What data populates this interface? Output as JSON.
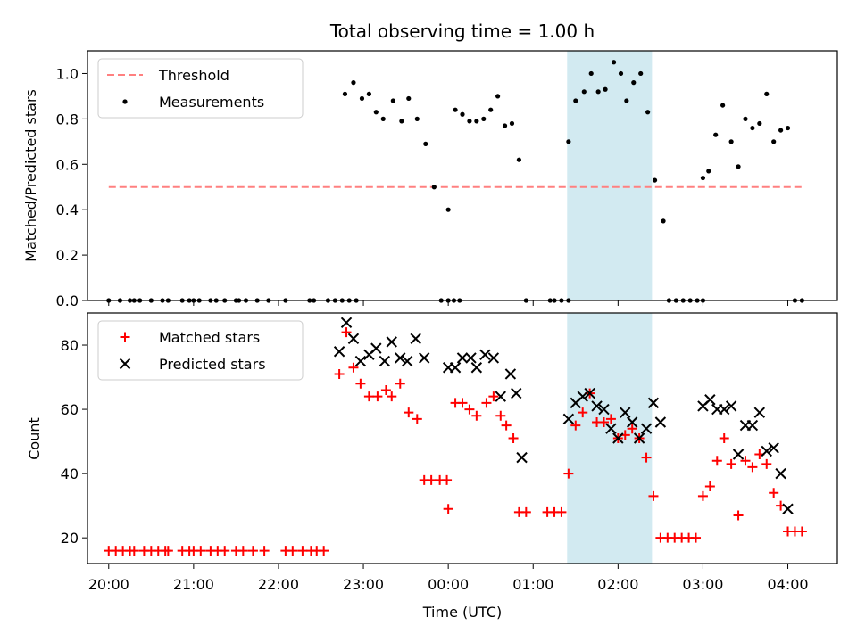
{
  "chart_data": [
    {
      "type": "scatter",
      "title": "Total observing time = 1.00 h",
      "xlabel": "",
      "ylabel": "Matched/Predicted stars",
      "xlim": [
        "19:45",
        "04:35"
      ],
      "ylim": [
        0,
        1.1
      ],
      "yticks": [
        "0.0",
        "0.2",
        "0.4",
        "0.6",
        "0.8",
        "1.0"
      ],
      "highlight_band": {
        "x": [
          "01:24",
          "02:24"
        ],
        "color": "#add8e6"
      },
      "legend": {
        "placement": "upper left",
        "entries": [
          "Threshold",
          "Measurements"
        ]
      },
      "series": [
        {
          "name": "Threshold",
          "kind": "dashed-line",
          "color": "#ff8080",
          "points": [
            [
              "20:00",
              0.5
            ],
            [
              "04:10",
              0.5
            ]
          ]
        },
        {
          "name": "Measurements",
          "kind": "dots",
          "color": "#000000",
          "points": [
            [
              "20:00",
              0
            ],
            [
              "20:08",
              0
            ],
            [
              "20:15",
              0
            ],
            [
              "20:18",
              0
            ],
            [
              "20:22",
              0
            ],
            [
              "20:30",
              0
            ],
            [
              "20:38",
              0
            ],
            [
              "20:42",
              0
            ],
            [
              "20:52",
              0
            ],
            [
              "20:57",
              0
            ],
            [
              "21:00",
              0
            ],
            [
              "21:04",
              0
            ],
            [
              "21:12",
              0
            ],
            [
              "21:16",
              0
            ],
            [
              "21:22",
              0
            ],
            [
              "21:30",
              0
            ],
            [
              "21:32",
              0
            ],
            [
              "21:37",
              0
            ],
            [
              "21:45",
              0
            ],
            [
              "21:53",
              0
            ],
            [
              "22:05",
              0
            ],
            [
              "22:22",
              0
            ],
            [
              "22:25",
              0
            ],
            [
              "22:35",
              0
            ],
            [
              "22:40",
              0
            ],
            [
              "22:45",
              0
            ],
            [
              "22:50",
              0
            ],
            [
              "22:55",
              0
            ],
            [
              "22:47",
              0.91
            ],
            [
              "22:53",
              0.96
            ],
            [
              "22:59",
              0.89
            ],
            [
              "23:04",
              0.91
            ],
            [
              "23:09",
              0.83
            ],
            [
              "23:14",
              0.8
            ],
            [
              "23:21",
              0.88
            ],
            [
              "23:27",
              0.79
            ],
            [
              "23:32",
              0.89
            ],
            [
              "23:38",
              0.8
            ],
            [
              "23:44",
              0.69
            ],
            [
              "23:50",
              0.5
            ],
            [
              "23:55",
              0
            ],
            [
              "24:00",
              0
            ],
            [
              "24:04",
              0
            ],
            [
              "24:08",
              0
            ],
            [
              "24:00",
              0.4
            ],
            [
              "24:05",
              0.84
            ],
            [
              "24:10",
              0.82
            ],
            [
              "24:15",
              0.79
            ],
            [
              "24:20",
              0.79
            ],
            [
              "24:25",
              0.8
            ],
            [
              "24:30",
              0.84
            ],
            [
              "24:35",
              0.9
            ],
            [
              "24:40",
              0.77
            ],
            [
              "24:45",
              0.78
            ],
            [
              "24:50",
              0.62
            ],
            [
              "24:55",
              0
            ],
            [
              "25:12",
              0
            ],
            [
              "25:15",
              0
            ],
            [
              "25:20",
              0
            ],
            [
              "25:25",
              0
            ],
            [
              "25:25",
              0.7
            ],
            [
              "25:30",
              0.88
            ],
            [
              "25:36",
              0.92
            ],
            [
              "25:41",
              1.0
            ],
            [
              "25:46",
              0.92
            ],
            [
              "25:51",
              0.93
            ],
            [
              "25:57",
              1.05
            ],
            [
              "26:02",
              1.0
            ],
            [
              "26:06",
              0.88
            ],
            [
              "26:11",
              0.96
            ],
            [
              "26:16",
              1.0
            ],
            [
              "26:21",
              0.83
            ],
            [
              "26:26",
              0.53
            ],
            [
              "26:32",
              0.35
            ],
            [
              "26:36",
              0
            ],
            [
              "26:41",
              0
            ],
            [
              "26:46",
              0
            ],
            [
              "26:51",
              0
            ],
            [
              "26:56",
              0
            ],
            [
              "27:00",
              0
            ],
            [
              "27:00",
              0.54
            ],
            [
              "27:04",
              0.57
            ],
            [
              "27:09",
              0.73
            ],
            [
              "27:14",
              0.86
            ],
            [
              "27:20",
              0.7
            ],
            [
              "27:25",
              0.59
            ],
            [
              "27:30",
              0.8
            ],
            [
              "27:35",
              0.76
            ],
            [
              "27:40",
              0.78
            ],
            [
              "27:45",
              0.91
            ],
            [
              "27:50",
              0.7
            ],
            [
              "27:55",
              0.75
            ],
            [
              "28:00",
              0.76
            ],
            [
              "28:05",
              0
            ],
            [
              "28:10",
              0
            ]
          ]
        }
      ]
    },
    {
      "type": "scatter",
      "title": "",
      "xlabel": "Time (UTC)",
      "ylabel": "Count",
      "xlim": [
        "19:45",
        "04:35"
      ],
      "ylim": [
        12,
        90
      ],
      "yticks": [
        "20",
        "40",
        "60",
        "80"
      ],
      "xticks": [
        "20:00",
        "21:00",
        "22:00",
        "23:00",
        "00:00",
        "01:00",
        "02:00",
        "03:00",
        "04:00"
      ],
      "highlight_band": {
        "x": [
          "01:24",
          "02:24"
        ],
        "color": "#add8e6"
      },
      "legend": {
        "placement": "upper left",
        "entries": [
          "Matched stars",
          "Predicted stars"
        ]
      },
      "series": [
        {
          "name": "Matched stars",
          "marker": "+",
          "color": "#ff0000",
          "points": [
            [
              "20:00",
              16
            ],
            [
              "20:05",
              16
            ],
            [
              "20:10",
              16
            ],
            [
              "20:15",
              16
            ],
            [
              "20:18",
              16
            ],
            [
              "20:25",
              16
            ],
            [
              "20:30",
              16
            ],
            [
              "20:35",
              16
            ],
            [
              "20:40",
              16
            ],
            [
              "20:42",
              16
            ],
            [
              "20:52",
              16
            ],
            [
              "20:57",
              16
            ],
            [
              "21:00",
              16
            ],
            [
              "21:05",
              16
            ],
            [
              "21:12",
              16
            ],
            [
              "21:17",
              16
            ],
            [
              "21:22",
              16
            ],
            [
              "21:30",
              16
            ],
            [
              "21:35",
              16
            ],
            [
              "21:42",
              16
            ],
            [
              "21:50",
              16
            ],
            [
              "22:05",
              16
            ],
            [
              "22:10",
              16
            ],
            [
              "22:17",
              16
            ],
            [
              "22:23",
              16
            ],
            [
              "22:27",
              16
            ],
            [
              "22:32",
              16
            ],
            [
              "22:43",
              71
            ],
            [
              "22:48",
              84
            ],
            [
              "22:53",
              73
            ],
            [
              "22:58",
              68
            ],
            [
              "23:04",
              64
            ],
            [
              "23:10",
              64
            ],
            [
              "23:16",
              66
            ],
            [
              "23:20",
              64
            ],
            [
              "23:26",
              68
            ],
            [
              "23:32",
              59
            ],
            [
              "23:38",
              57
            ],
            [
              "23:43",
              38
            ],
            [
              "23:48",
              38
            ],
            [
              "23:54",
              38
            ],
            [
              "23:59",
              38
            ],
            [
              "24:00",
              29
            ],
            [
              "24:05",
              62
            ],
            [
              "24:10",
              62
            ],
            [
              "24:15",
              60
            ],
            [
              "24:20",
              58
            ],
            [
              "24:27",
              62
            ],
            [
              "24:32",
              64
            ],
            [
              "24:37",
              58
            ],
            [
              "24:41",
              55
            ],
            [
              "24:46",
              51
            ],
            [
              "24:50",
              28
            ],
            [
              "24:55",
              28
            ],
            [
              "25:10",
              28
            ],
            [
              "25:15",
              28
            ],
            [
              "25:20",
              28
            ],
            [
              "25:25",
              40
            ],
            [
              "25:30",
              55
            ],
            [
              "25:35",
              59
            ],
            [
              "25:40",
              65
            ],
            [
              "25:45",
              56
            ],
            [
              "25:50",
              56
            ],
            [
              "25:55",
              57
            ],
            [
              "26:00",
              51
            ],
            [
              "26:05",
              52
            ],
            [
              "26:10",
              54
            ],
            [
              "26:15",
              51
            ],
            [
              "26:20",
              45
            ],
            [
              "26:25",
              33
            ],
            [
              "26:30",
              20
            ],
            [
              "26:35",
              20
            ],
            [
              "26:40",
              20
            ],
            [
              "26:45",
              20
            ],
            [
              "26:50",
              20
            ],
            [
              "26:55",
              20
            ],
            [
              "27:00",
              33
            ],
            [
              "27:05",
              36
            ],
            [
              "27:10",
              44
            ],
            [
              "27:15",
              51
            ],
            [
              "27:20",
              43
            ],
            [
              "27:25",
              27
            ],
            [
              "27:30",
              44
            ],
            [
              "27:35",
              42
            ],
            [
              "27:40",
              46
            ],
            [
              "27:45",
              43
            ],
            [
              "27:50",
              34
            ],
            [
              "27:55",
              30
            ],
            [
              "28:00",
              22
            ],
            [
              "28:05",
              22
            ],
            [
              "28:10",
              22
            ]
          ]
        },
        {
          "name": "Predicted stars",
          "marker": "x",
          "color": "#000000",
          "points": [
            [
              "22:43",
              78
            ],
            [
              "22:48",
              87
            ],
            [
              "22:53",
              82
            ],
            [
              "22:58",
              75
            ],
            [
              "23:04",
              77
            ],
            [
              "23:09",
              79
            ],
            [
              "23:15",
              75
            ],
            [
              "23:20",
              81
            ],
            [
              "23:26",
              76
            ],
            [
              "23:31",
              75
            ],
            [
              "23:37",
              82
            ],
            [
              "23:43",
              76
            ],
            [
              "24:00",
              73
            ],
            [
              "24:05",
              73
            ],
            [
              "24:10",
              76
            ],
            [
              "24:16",
              76
            ],
            [
              "24:20",
              73
            ],
            [
              "24:26",
              77
            ],
            [
              "24:32",
              76
            ],
            [
              "24:37",
              64
            ],
            [
              "24:44",
              71
            ],
            [
              "24:48",
              65
            ],
            [
              "24:52",
              45
            ],
            [
              "25:25",
              57
            ],
            [
              "25:30",
              62
            ],
            [
              "25:35",
              64
            ],
            [
              "25:40",
              65
            ],
            [
              "25:45",
              61
            ],
            [
              "25:50",
              60
            ],
            [
              "25:55",
              54
            ],
            [
              "26:00",
              51
            ],
            [
              "26:05",
              59
            ],
            [
              "26:10",
              56
            ],
            [
              "26:15",
              51
            ],
            [
              "26:20",
              54
            ],
            [
              "26:25",
              62
            ],
            [
              "26:30",
              56
            ],
            [
              "27:00",
              61
            ],
            [
              "27:05",
              63
            ],
            [
              "27:10",
              60
            ],
            [
              "27:15",
              60
            ],
            [
              "27:20",
              61
            ],
            [
              "27:25",
              46
            ],
            [
              "27:30",
              55
            ],
            [
              "27:35",
              55
            ],
            [
              "27:40",
              59
            ],
            [
              "27:45",
              47
            ],
            [
              "27:50",
              48
            ],
            [
              "27:55",
              40
            ],
            [
              "28:00",
              29
            ]
          ]
        }
      ]
    }
  ]
}
